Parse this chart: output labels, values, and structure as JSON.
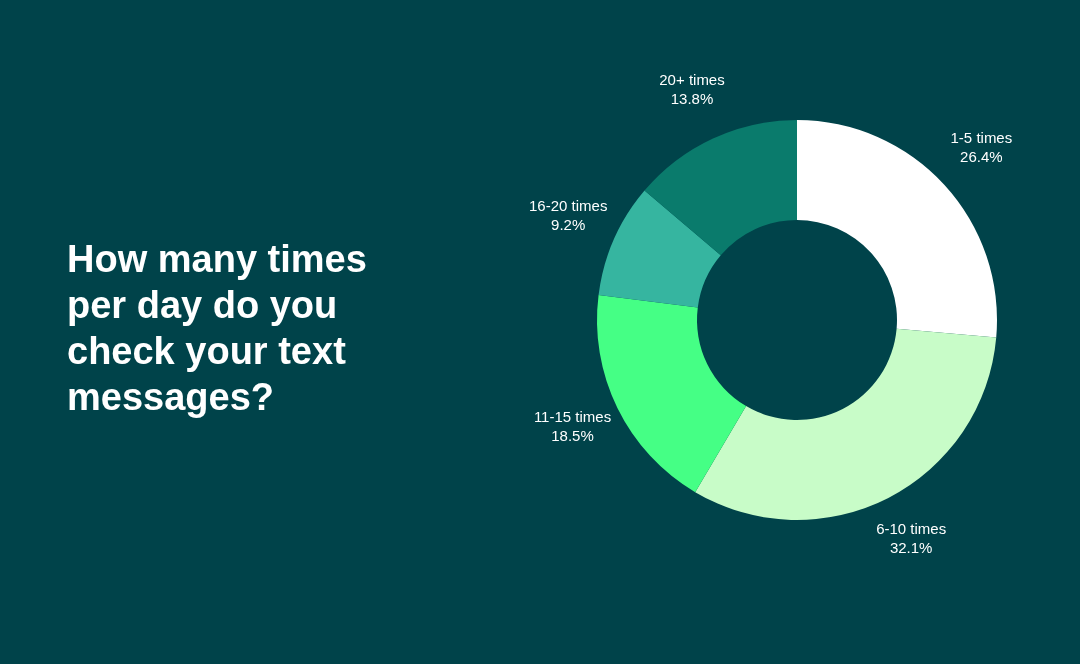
{
  "chart_data": {
    "type": "donut",
    "title": "How many times per day do you check your text messages?",
    "categories": [
      "1-5 times",
      "6-10 times",
      "11-15 times",
      "16-20 times",
      "20+ times"
    ],
    "values": [
      26.4,
      32.1,
      18.5,
      9.2,
      13.8
    ],
    "value_labels": [
      "26.4%",
      "32.1%",
      "18.5%",
      "9.2%",
      "13.8%"
    ],
    "colors": [
      "#ffffff",
      "#c8fcc8",
      "#45ff85",
      "#36b5a0",
      "#0a7b6c"
    ],
    "legend": false
  }
}
